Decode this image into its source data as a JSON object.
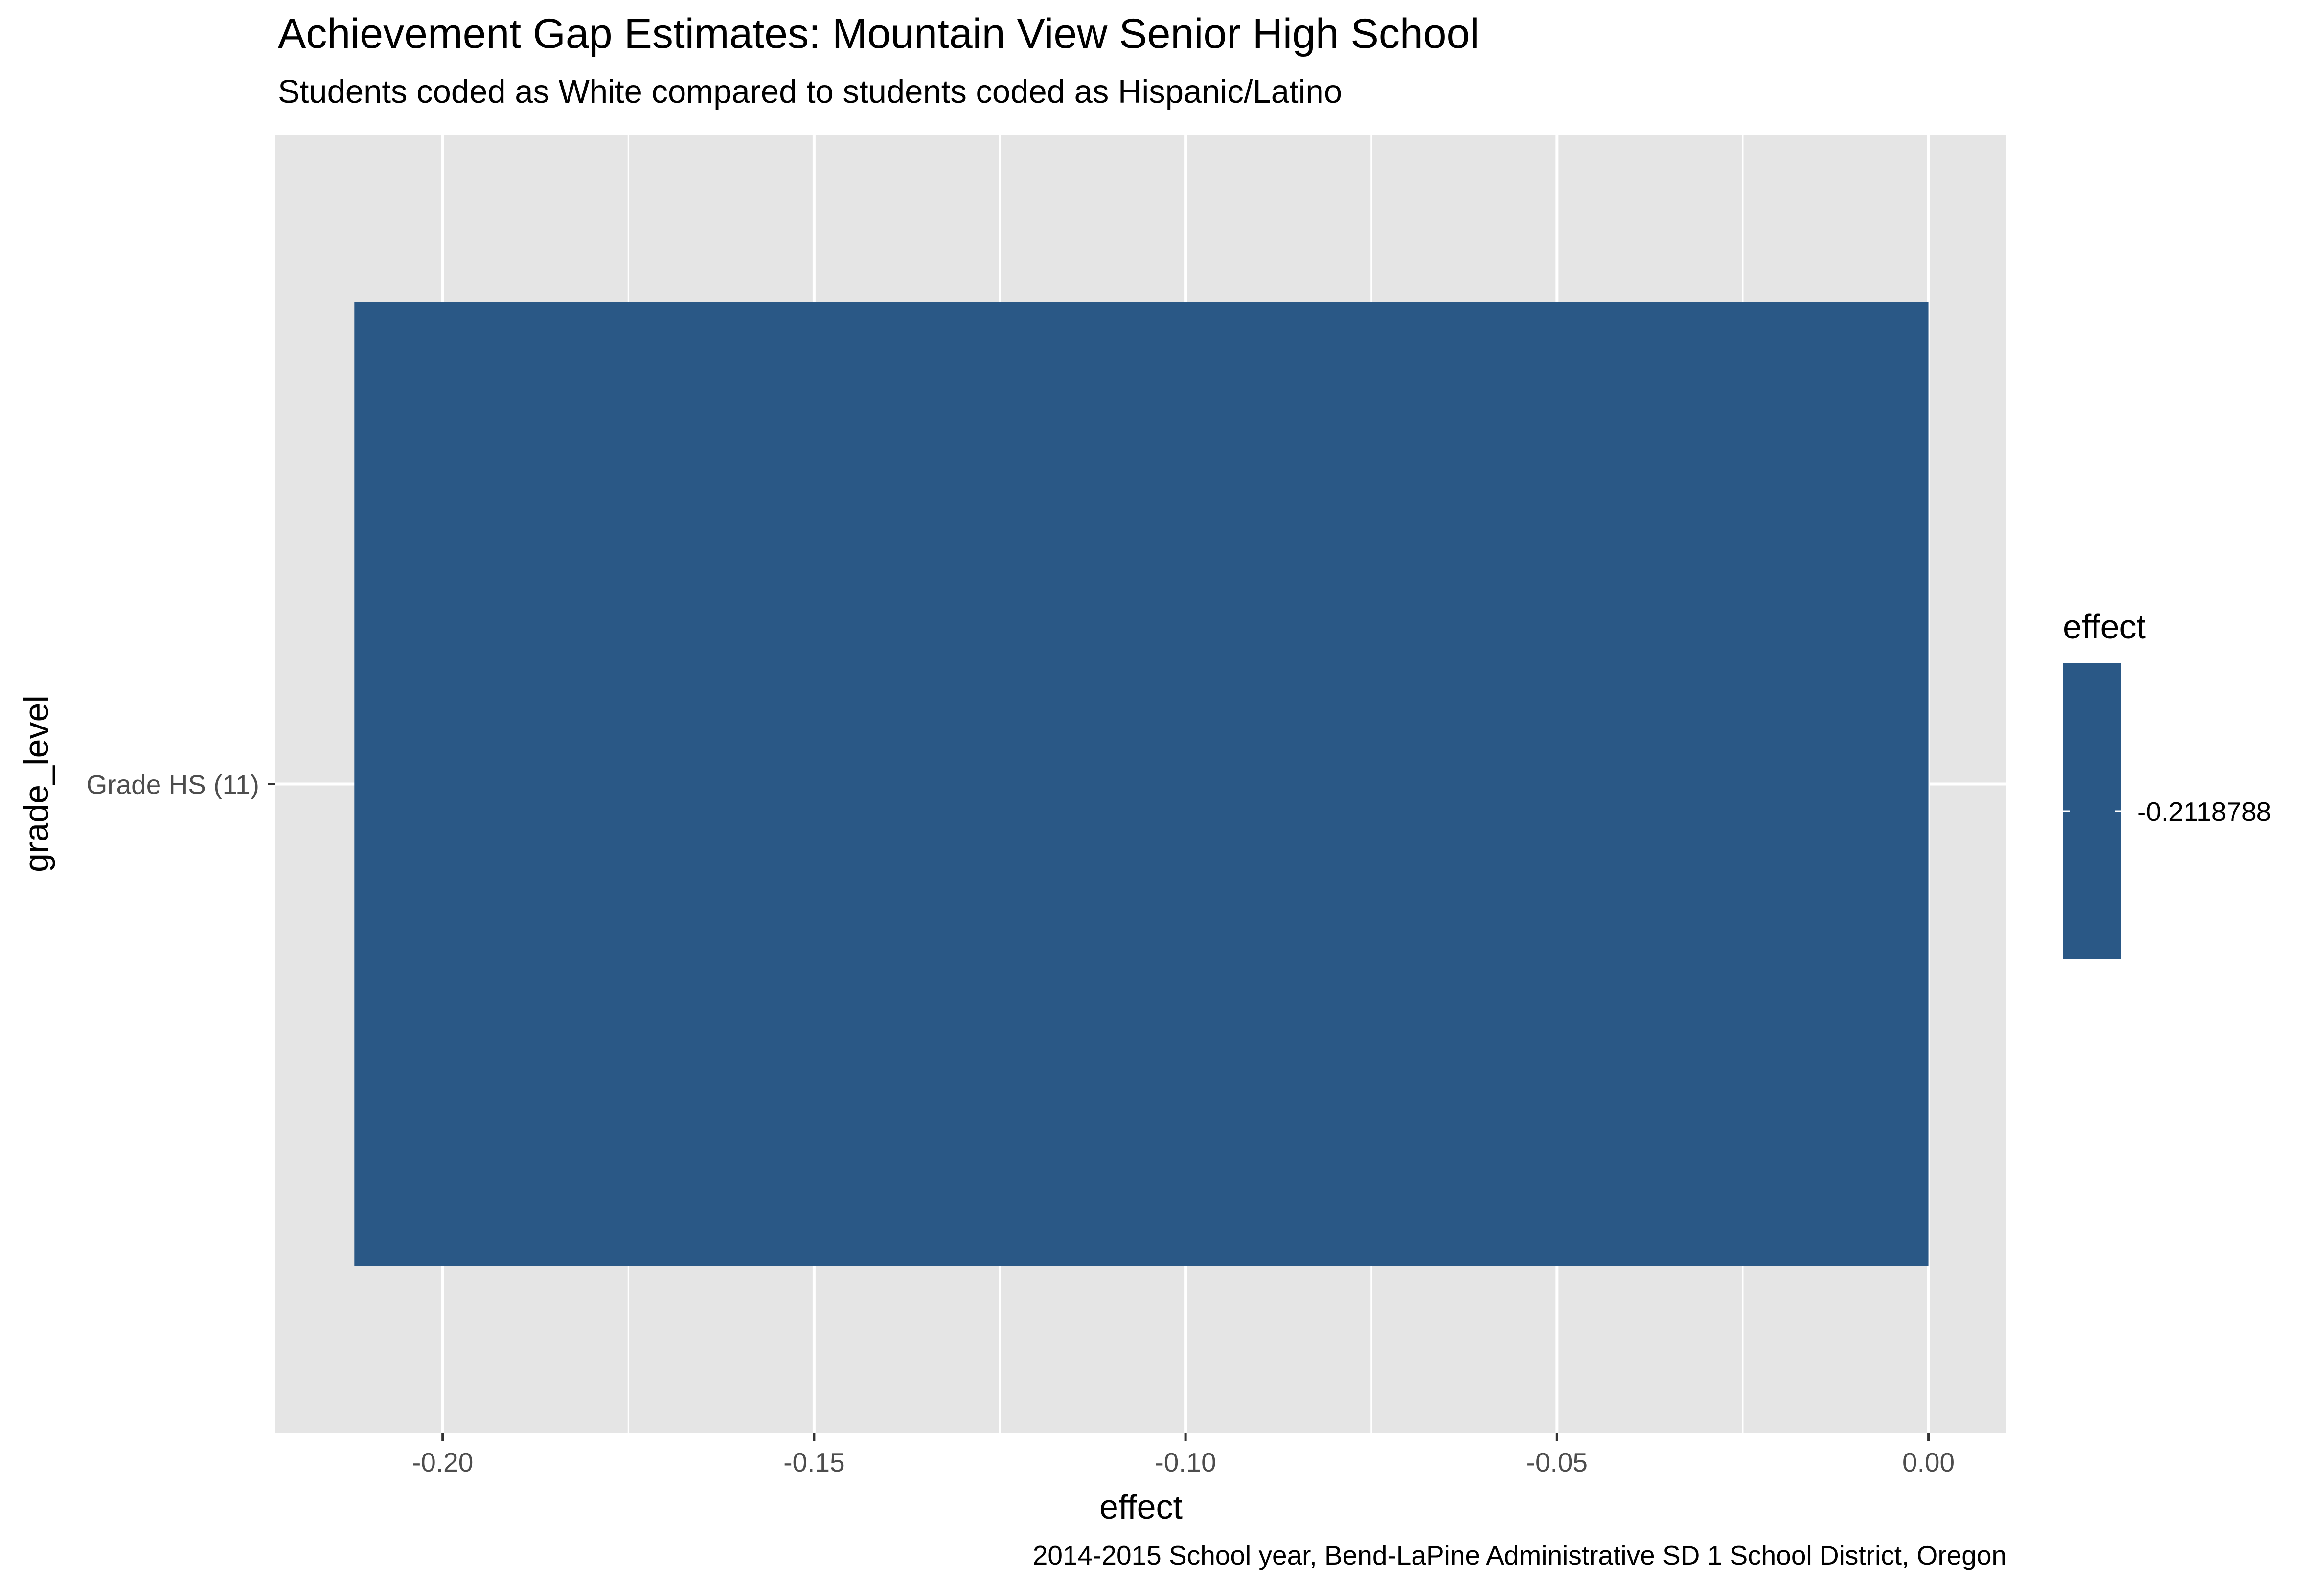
{
  "chart_data": {
    "type": "bar",
    "orientation": "horizontal",
    "title": "Achievement Gap Estimates: Mountain View Senior High School",
    "subtitle": "Students coded as White compared to students coded as Hispanic/Latino",
    "xlabel": "effect",
    "ylabel": "grade_level",
    "caption": "2014-2015 School year, Bend-LaPine Administrative SD 1 School District, Oregon",
    "categories": [
      "Grade HS (11)"
    ],
    "values": [
      -0.2118788
    ],
    "xlim": [
      -0.2225,
      0.0105
    ],
    "x_ticks": [
      -0.2,
      -0.15,
      -0.1,
      -0.05,
      0.0
    ],
    "x_tick_labels": [
      "-0.20",
      "-0.15",
      "-0.10",
      "-0.05",
      "0.00"
    ],
    "grid": true,
    "legend": {
      "title": "effect",
      "labels": [
        "-0.2118788"
      ],
      "placement": "right"
    },
    "colors": {
      "bar": "#2a5886",
      "panel": "#e5e5e5",
      "grid": "#ffffff"
    }
  }
}
